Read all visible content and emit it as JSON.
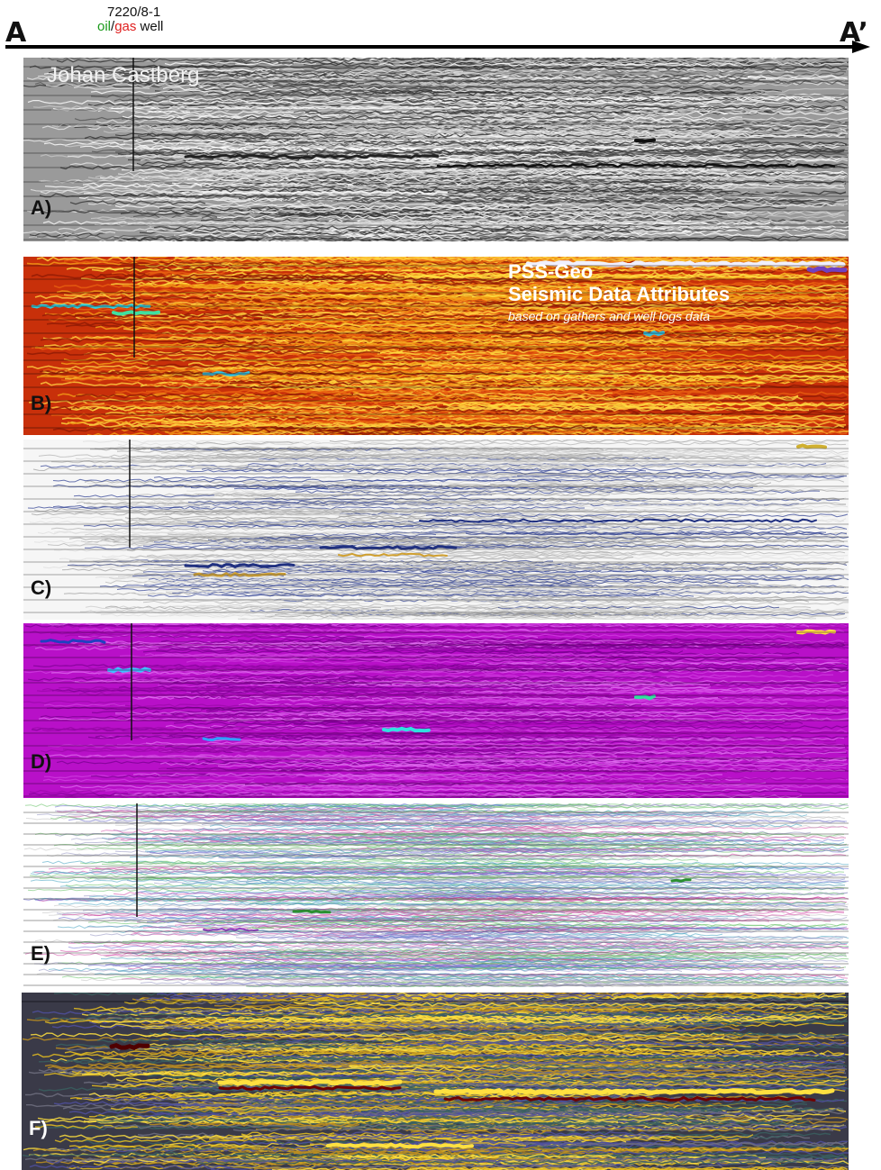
{
  "profile": {
    "start_label": "A",
    "end_label": "A’"
  },
  "well": {
    "name": "7220/8-1",
    "oil_label": "oil",
    "separator": "/",
    "gas_label": "gas",
    "suffix": " well"
  },
  "field_name": "Johan Castberg",
  "branding": {
    "title_line1": "PSS-Geo",
    "title_line2": "Seismic Data Attributes",
    "subtitle": "based on gathers and well logs data"
  },
  "panels": [
    {
      "label": "A)",
      "attribute_palette": "grayscale"
    },
    {
      "label": "B)",
      "attribute_palette": "red-orange-yellow"
    },
    {
      "label": "C)",
      "attribute_palette": "white-gray-blue"
    },
    {
      "label": "D)",
      "attribute_palette": "magenta"
    },
    {
      "label": "E)",
      "attribute_palette": "white-multicolor"
    },
    {
      "label": "F)",
      "attribute_palette": "dark-yellow-red"
    }
  ],
  "colors": {
    "oil": "#1a9a1a",
    "gas": "#e02020",
    "panel_b_bg": "#c8300a",
    "panel_d_bg": "#b810c8",
    "panel_f_bg": "#3a3a48"
  }
}
